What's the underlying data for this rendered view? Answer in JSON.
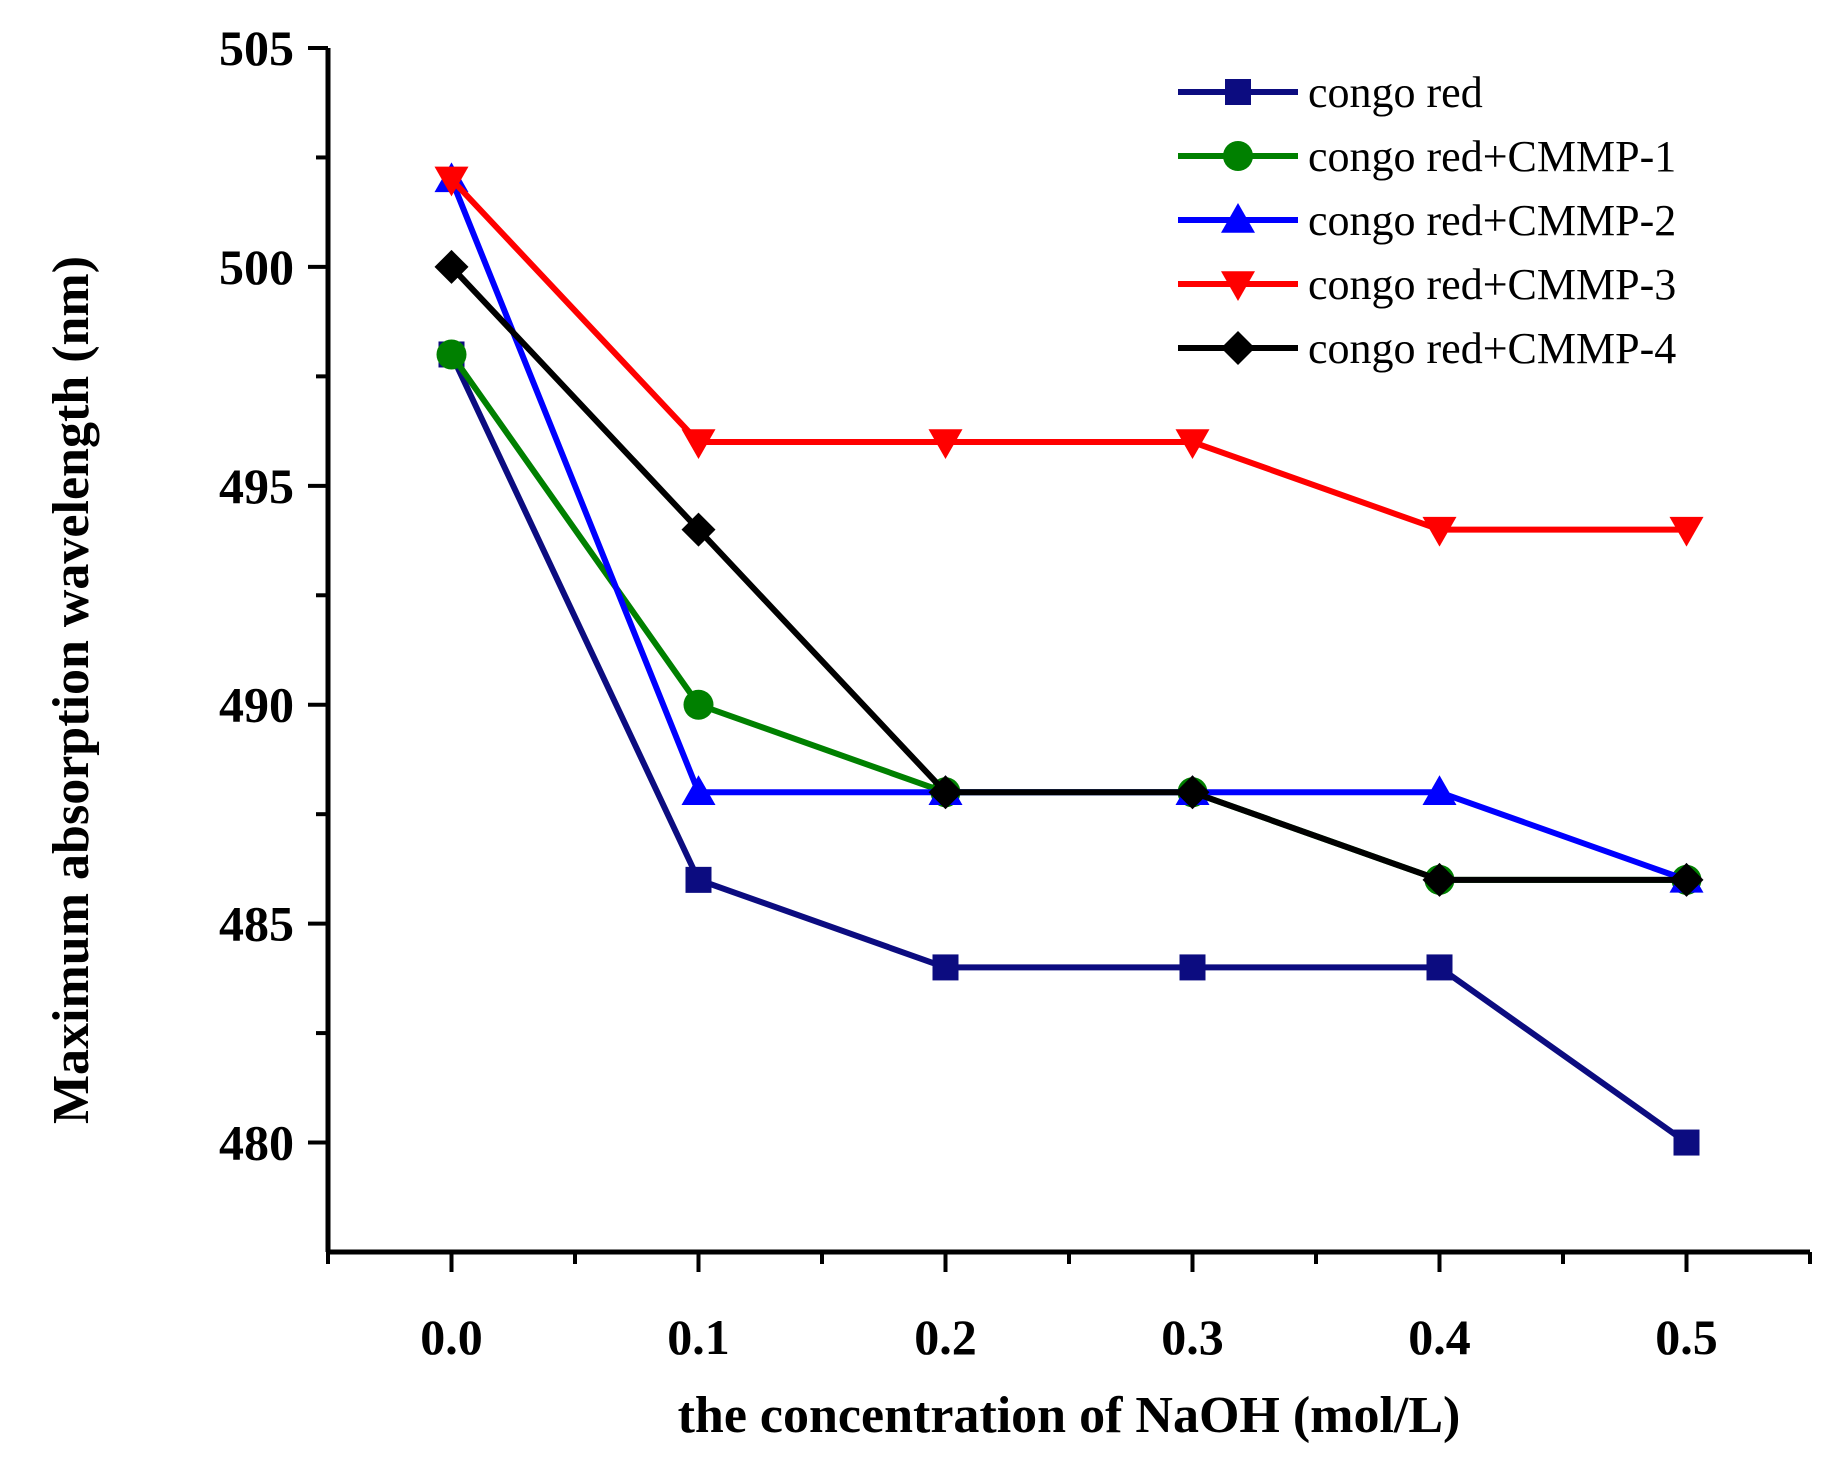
{
  "chart_data": {
    "type": "line",
    "title": "",
    "xlabel": "the concentration of NaOH (mol/L)",
    "ylabel": "Maximum absorption wavelength (nm)",
    "x": [
      0.0,
      0.1,
      0.2,
      0.3,
      0.4,
      0.5
    ],
    "x_tick_labels": [
      "0.0",
      "0.1",
      "0.2",
      "0.3",
      "0.4",
      "0.5"
    ],
    "y_tick_labels": [
      "480",
      "485",
      "490",
      "495",
      "500",
      "505"
    ],
    "xlim": [
      -0.05,
      0.55
    ],
    "ylim": [
      477.5,
      505
    ],
    "grid": false,
    "legend_position": "top-right",
    "series": [
      {
        "name": "congo red",
        "marker": "square",
        "color": "#0c0c80",
        "values": [
          498,
          486,
          484,
          484,
          484,
          480
        ]
      },
      {
        "name": "congo red+CMMP-1",
        "marker": "circle",
        "color": "#008000",
        "values": [
          498,
          490,
          488,
          488,
          486,
          486
        ]
      },
      {
        "name": "congo red+CMMP-2",
        "marker": "triangle-up",
        "color": "#0000ff",
        "values": [
          502,
          488,
          488,
          488,
          488,
          486
        ]
      },
      {
        "name": "congo red+CMMP-3",
        "marker": "triangle-down",
        "color": "#ff0000",
        "values": [
          502,
          496,
          496,
          496,
          494,
          494
        ]
      },
      {
        "name": "congo red+CMMP-4",
        "marker": "diamond",
        "color": "#000000",
        "values": [
          500,
          494,
          488,
          488,
          486,
          486
        ]
      }
    ]
  }
}
